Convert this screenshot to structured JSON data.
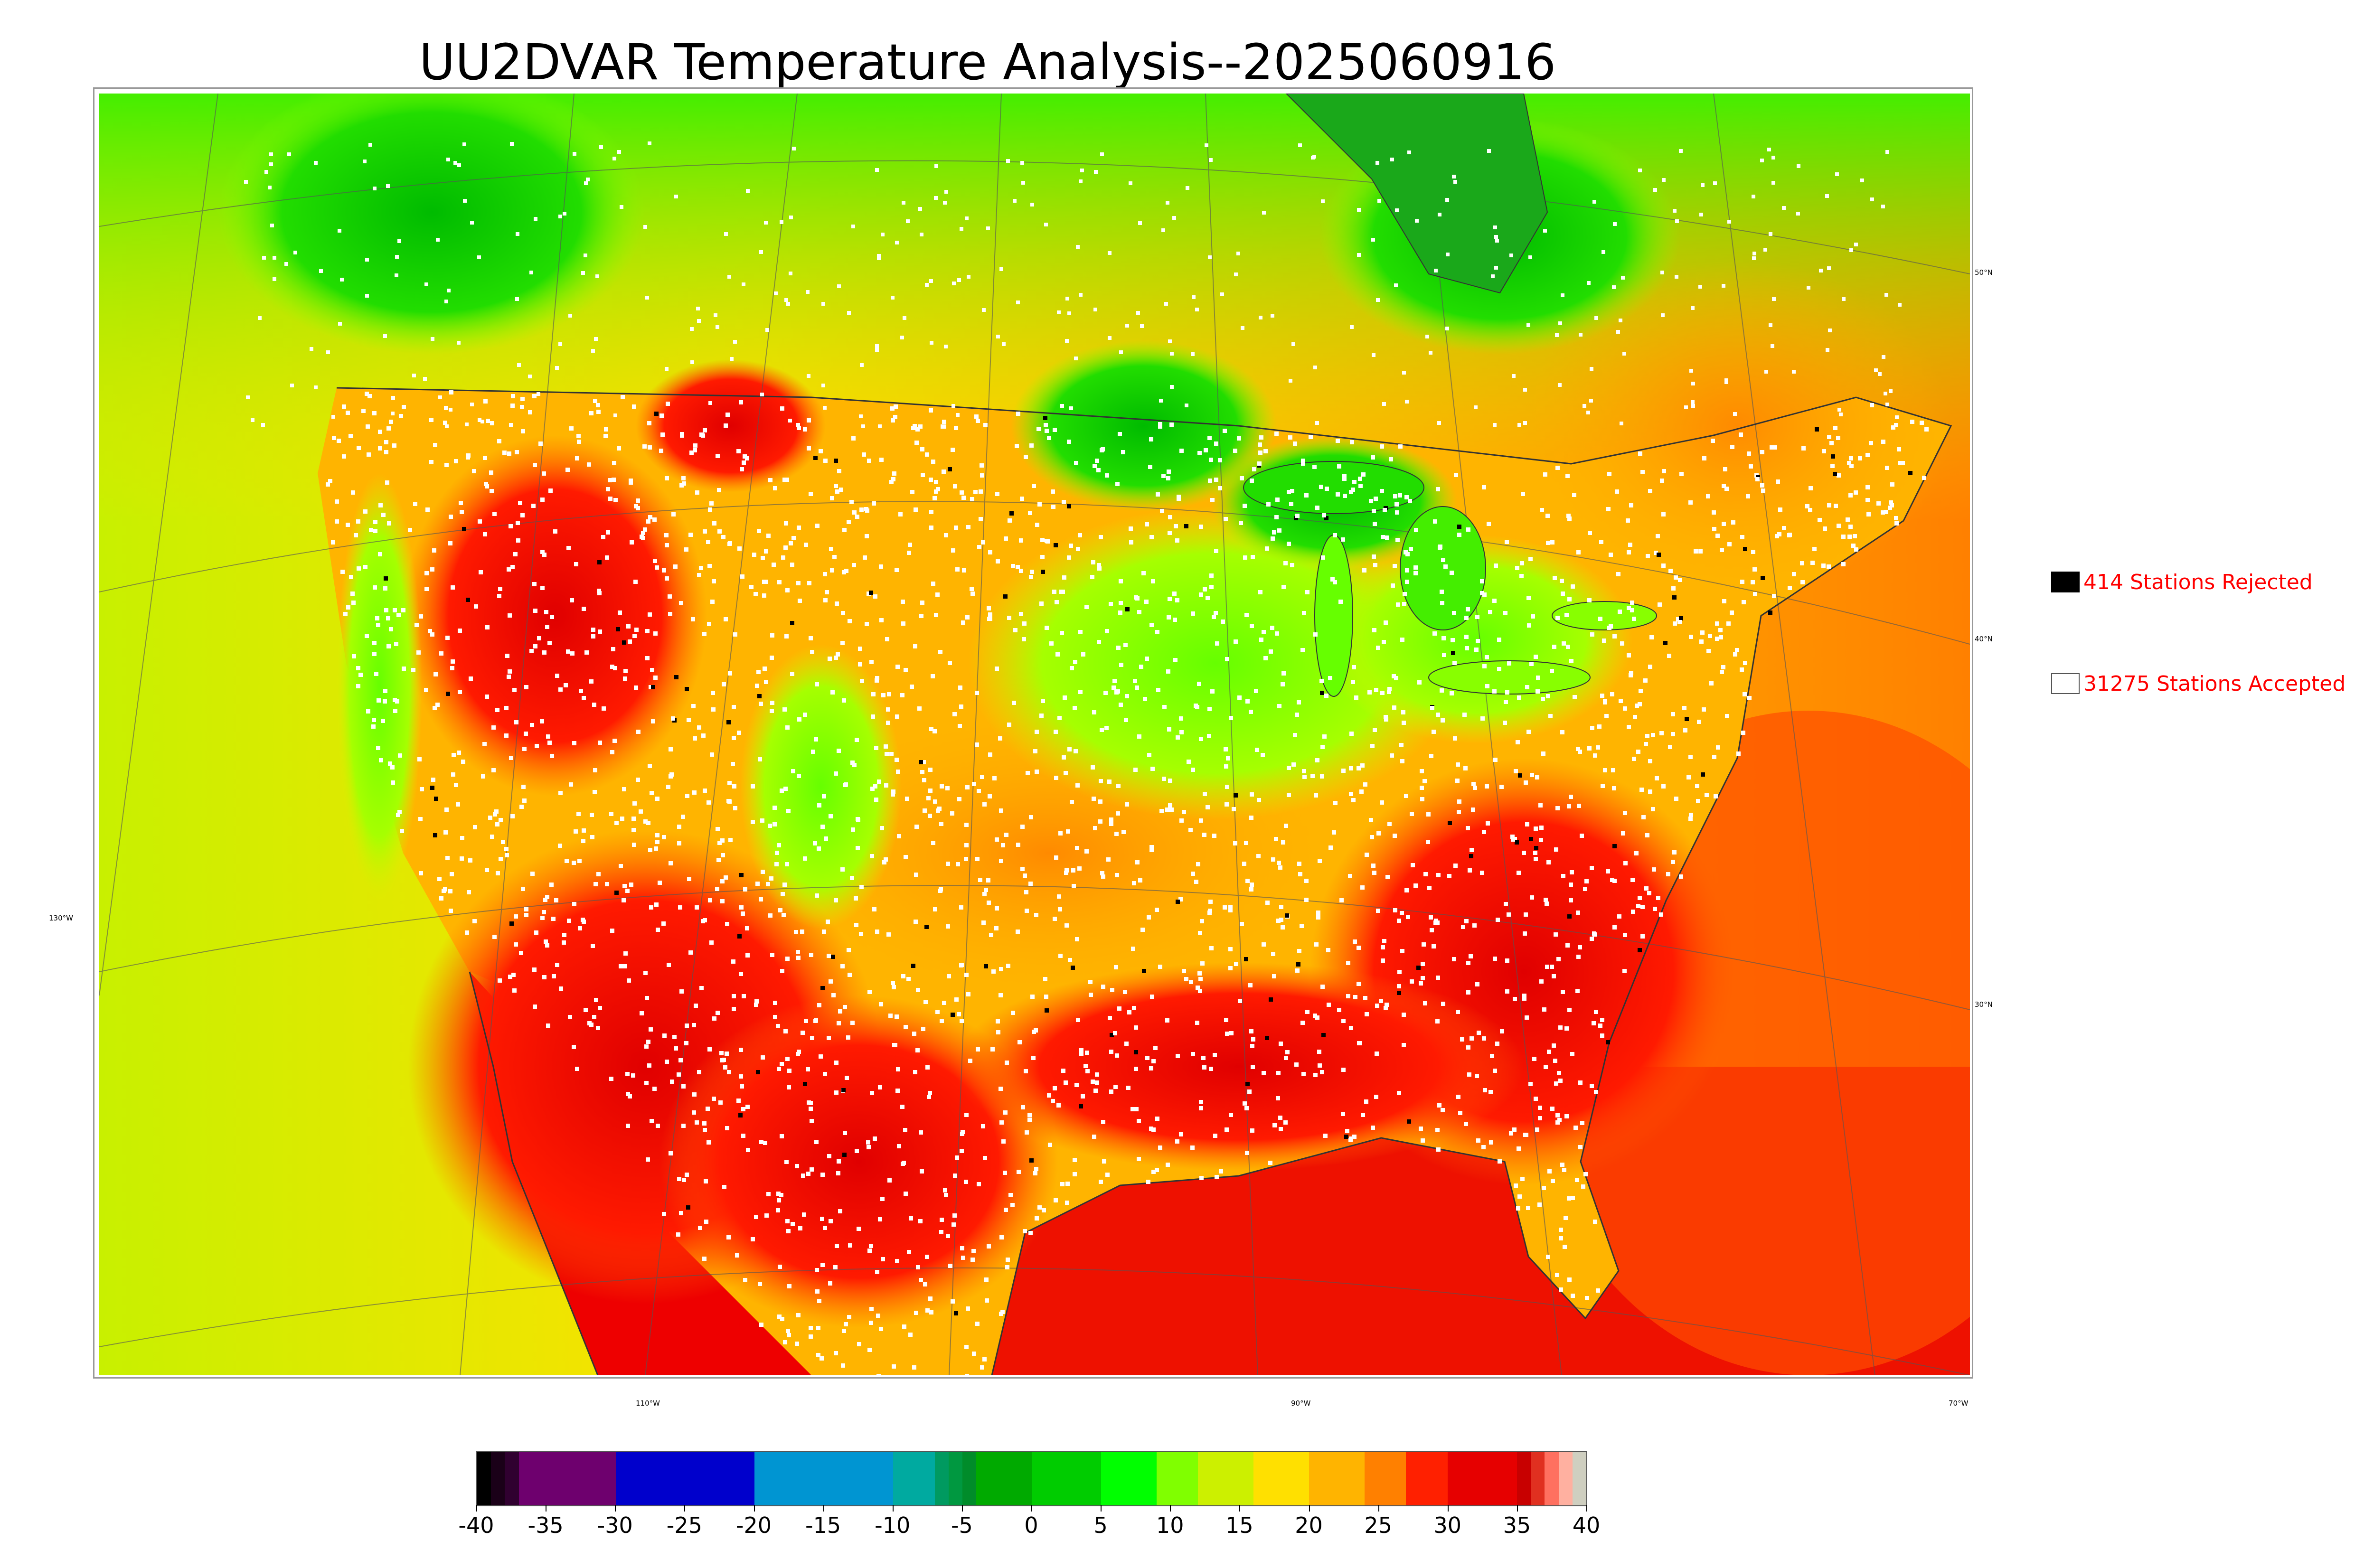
{
  "title": "UU2DVAR Temperature Analysis--2025060916",
  "map": {
    "colors": {
      "ocean_pacific": "#c8f000",
      "ocean_atlantic": "#ff4d00",
      "gulf": "#ee1100",
      "hot": "#e60000",
      "warm": "#ffa000",
      "mild": "#ffd800",
      "cool": "#a6ff00",
      "cold": "#22dd00",
      "station_accepted": "#ffffff",
      "station_rejected": "#000000",
      "coastline": "#333333",
      "gridline": "#555555"
    },
    "lat_labels": [
      "50°N",
      "40°N",
      "30°N"
    ],
    "lon_labels": [
      "130°W",
      "110°W",
      "90°W",
      "70°W"
    ]
  },
  "legend": {
    "rejected": "414 Stations Rejected",
    "accepted": "31275 Stations Accepted"
  },
  "colorbar": {
    "min": -40,
    "max": 40,
    "tick_labels": [
      "-40",
      "-35",
      "-30",
      "-25",
      "-20",
      "-15",
      "-10",
      "-5",
      "0",
      "5",
      "10",
      "15",
      "20",
      "25",
      "30",
      "35",
      "40"
    ],
    "segments": [
      {
        "from": -40,
        "to": -39,
        "color": "#000000"
      },
      {
        "from": -39,
        "to": -38,
        "color": "#1a0018"
      },
      {
        "from": -38,
        "to": -37,
        "color": "#300030"
      },
      {
        "from": -37,
        "to": -30,
        "color": "#6e006e"
      },
      {
        "from": -30,
        "to": -20,
        "color": "#0000cc"
      },
      {
        "from": -20,
        "to": -15,
        "color": "#0095d2"
      },
      {
        "from": -15,
        "to": -10,
        "color": "#0095d2"
      },
      {
        "from": -10,
        "to": -7,
        "color": "#00aaa0"
      },
      {
        "from": -7,
        "to": -6,
        "color": "#009a60"
      },
      {
        "from": -6,
        "to": -5,
        "color": "#009840"
      },
      {
        "from": -5,
        "to": -4,
        "color": "#008c2a"
      },
      {
        "from": -4,
        "to": 0,
        "color": "#00aa00"
      },
      {
        "from": 0,
        "to": 5,
        "color": "#00cc00"
      },
      {
        "from": 5,
        "to": 9,
        "color": "#00ff00"
      },
      {
        "from": 9,
        "to": 12,
        "color": "#80ff00"
      },
      {
        "from": 12,
        "to": 16,
        "color": "#ccf000"
      },
      {
        "from": 16,
        "to": 20,
        "color": "#ffe000"
      },
      {
        "from": 20,
        "to": 24,
        "color": "#ffb400"
      },
      {
        "from": 24,
        "to": 27,
        "color": "#ff8000"
      },
      {
        "from": 27,
        "to": 30,
        "color": "#ff2000"
      },
      {
        "from": 30,
        "to": 35,
        "color": "#e60000"
      },
      {
        "from": 35,
        "to": 36,
        "color": "#c80000"
      },
      {
        "from": 36,
        "to": 37,
        "color": "#e03020"
      },
      {
        "from": 37,
        "to": 38,
        "color": "#ff7060"
      },
      {
        "from": 38,
        "to": 39,
        "color": "#ffb0a0"
      },
      {
        "from": 39,
        "to": 40,
        "color": "#cfcfc0"
      }
    ]
  }
}
